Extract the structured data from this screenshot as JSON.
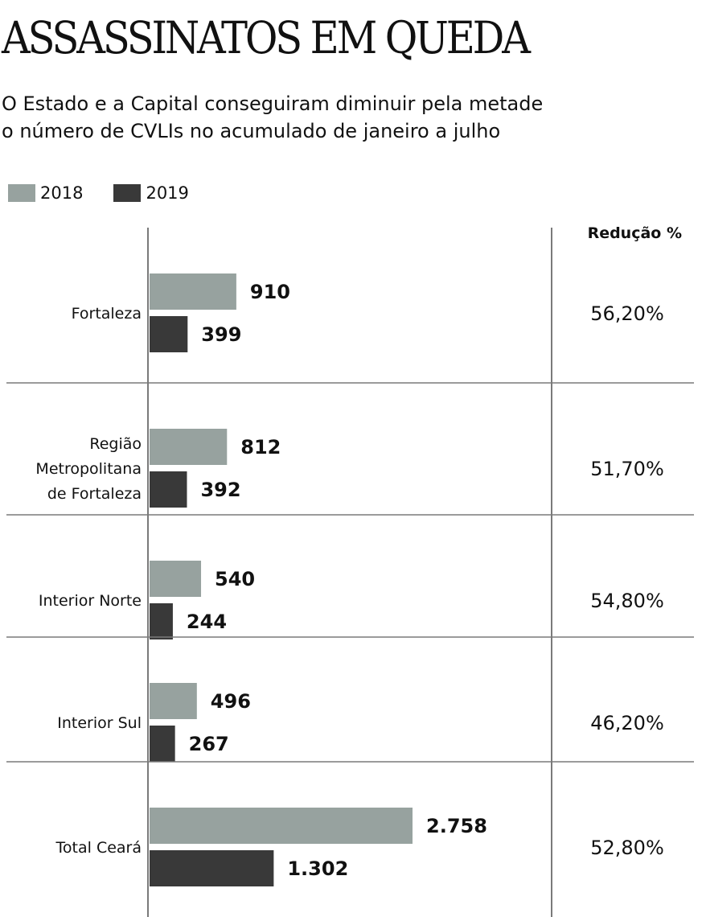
{
  "title": "ASSASSINATOS EM QUEDA",
  "subtitle_lines": [
    "O Estado e a Capital conseguiram diminuir pela metade",
    "o número de CVLIs no acumulado de janeiro a julho"
  ],
  "colors": {
    "s2018": "#97a29f",
    "s2019": "#393939",
    "rule": "#7a7a7a"
  },
  "chart_data": {
    "type": "bar",
    "orientation": "horizontal",
    "title": "ASSASSINATOS EM QUEDA",
    "legend_position": "top-left",
    "categories": [
      [
        "Fortaleza"
      ],
      [
        "Região",
        "Metropolitana",
        "de Fortaleza"
      ],
      [
        "Interior Norte"
      ],
      [
        "Interior Sul"
      ],
      [
        "Total Ceará"
      ]
    ],
    "series": [
      {
        "name": "2018",
        "values": [
          910,
          812,
          540,
          496,
          2758
        ],
        "labels": [
          "910",
          "812",
          "540",
          "496",
          "2.758"
        ]
      },
      {
        "name": "2019",
        "values": [
          399,
          392,
          244,
          267,
          1302
        ],
        "labels": [
          "399",
          "392",
          "244",
          "267",
          "1.302"
        ]
      }
    ],
    "reduction_header": "Redução %",
    "reduction": [
      "56,20%",
      "51,70%",
      "54,80%",
      "46,20%",
      "52,80%"
    ]
  }
}
